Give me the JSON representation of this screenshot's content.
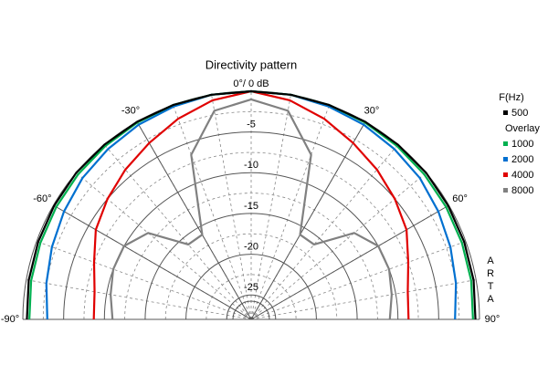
{
  "chart_data": {
    "type": "polar",
    "title": "Directivity pattern",
    "x": [
      -90,
      -80,
      -70,
      -60,
      -50,
      -40,
      -30,
      -20,
      -10,
      0,
      10,
      20,
      30,
      40,
      50,
      60,
      70,
      80,
      90
    ],
    "rlim": [
      -28,
      0
    ],
    "rticks": [
      {
        "value": 0,
        "label": "0°/ 0 dB"
      },
      -5,
      -10,
      -15,
      -20,
      -25
    ],
    "xticks": [
      {
        "value": -90,
        "label": "-90°"
      },
      {
        "value": -60,
        "label": "-60°"
      },
      {
        "value": -30,
        "label": "-30°"
      },
      {
        "value": 30,
        "label": "30°"
      },
      {
        "value": 60,
        "label": "60°"
      },
      {
        "value": 90,
        "label": "90°"
      }
    ],
    "legend_title": "F(Hz)",
    "overlay_title": "Overlay",
    "watermark": "ARTA",
    "series": [
      {
        "name": "500",
        "color": "#000000",
        "values": [
          -0.5,
          -0.3,
          -0.2,
          -0.1,
          0,
          0,
          0,
          0,
          0,
          0,
          0,
          0,
          0,
          0,
          0,
          -0.1,
          -0.2,
          -0.3,
          -0.5
        ]
      },
      {
        "name": "1000",
        "color": "#00b050",
        "values": [
          -0.8,
          -0.6,
          -0.5,
          -0.4,
          -0.3,
          -0.2,
          -0.1,
          0,
          0,
          0,
          0,
          0,
          -0.1,
          -0.2,
          -0.3,
          -0.4,
          -0.5,
          -0.6,
          -0.8
        ]
      },
      {
        "name": "2000",
        "color": "#0070d0",
        "values": [
          -3,
          -2.5,
          -2,
          -1.5,
          -1,
          -0.7,
          -0.4,
          -0.2,
          0,
          0,
          0,
          -0.2,
          -0.4,
          -0.7,
          -1,
          -1.5,
          -2,
          -2.5,
          -3
        ]
      },
      {
        "name": "4000",
        "color": "#e00000",
        "values": [
          -8.7,
          -8.5,
          -7.5,
          -6,
          -5,
          -4,
          -3,
          -1.8,
          -0.7,
          0,
          -0.7,
          -1.8,
          -3,
          -4,
          -5,
          -6,
          -7.5,
          -8.5,
          -8.7
        ]
      },
      {
        "name": "8000",
        "color": "#808080",
        "values": [
          -11,
          -10.5,
          -10,
          -10,
          -11.5,
          -16,
          -16,
          -6.5,
          -2,
          -1,
          -2,
          -6.5,
          -16,
          -16,
          -11.5,
          -10,
          -10,
          -10.5,
          -11
        ]
      }
    ]
  }
}
